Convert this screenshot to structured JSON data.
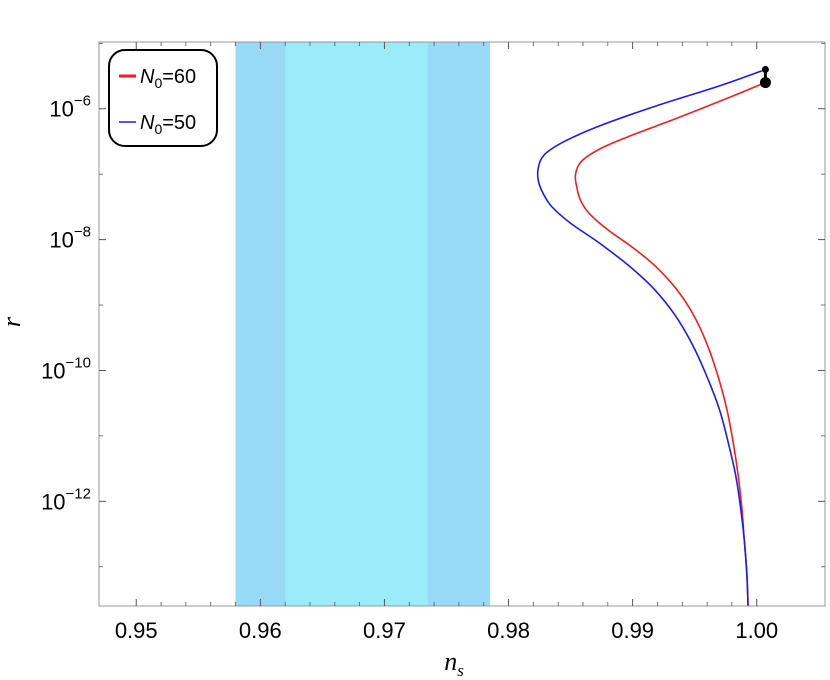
{
  "chart_data": {
    "type": "line",
    "title": "",
    "xlabel": "n",
    "xlabel_sub": "s",
    "ylabel": "r",
    "xlim": [
      0.947,
      1.0055
    ],
    "ylim_log10": [
      -13.6,
      -4.98
    ],
    "yscale": "log",
    "grid": false,
    "legend_position": "top-left",
    "x_ticks": [
      {
        "value": 0.95,
        "label": "0.95"
      },
      {
        "value": 0.96,
        "label": "0.96"
      },
      {
        "value": 0.97,
        "label": "0.97"
      },
      {
        "value": 0.98,
        "label": "0.98"
      },
      {
        "value": 0.99,
        "label": "0.99"
      },
      {
        "value": 1.0,
        "label": "1.00"
      }
    ],
    "y_ticks": [
      {
        "value": -6,
        "base": "10",
        "exp": "−6"
      },
      {
        "value": -8,
        "base": "10",
        "exp": "−8"
      },
      {
        "value": -10,
        "base": "10",
        "exp": "−10"
      },
      {
        "value": -12,
        "base": "10",
        "exp": "−12"
      }
    ],
    "bands": [
      {
        "x0": 0.958,
        "x1": 0.9785,
        "color": "#98d9f7"
      },
      {
        "x0": 0.962,
        "x1": 0.9735,
        "color": "#9cebfa"
      }
    ],
    "series": [
      {
        "name_main": "N",
        "name_sub": "0",
        "name_rest": "=60",
        "color": "#ff1a1a",
        "x": [
          0.9993,
          0.9992,
          0.999,
          0.9988,
          0.9985,
          0.9981,
          0.9976,
          0.9969,
          0.996,
          0.9949,
          0.9935,
          0.9918,
          0.99,
          0.988,
          0.9865,
          0.9858,
          0.9855,
          0.9854,
          0.9859,
          0.9875,
          0.99,
          0.9935,
          0.9975,
          1.0007
        ],
        "log10y": [
          -13.6,
          -13.1,
          -12.6,
          -12.1,
          -11.6,
          -11.1,
          -10.6,
          -10.1,
          -9.6,
          -9.15,
          -8.75,
          -8.4,
          -8.12,
          -7.85,
          -7.6,
          -7.4,
          -7.2,
          -7.0,
          -6.8,
          -6.6,
          -6.4,
          -6.15,
          -5.85,
          -5.6
        ]
      },
      {
        "name_main": "N",
        "name_sub": "0",
        "name_rest": "=50",
        "color": "#1a1aff",
        "x": [
          0.9993,
          0.9992,
          0.999,
          0.9987,
          0.9983,
          0.9977,
          0.997,
          0.996,
          0.9948,
          0.9934,
          0.9917,
          0.9897,
          0.9873,
          0.985,
          0.9835,
          0.9828,
          0.9824,
          0.9824,
          0.9829,
          0.9845,
          0.9875,
          0.992,
          0.997,
          1.0007
        ],
        "log10y": [
          -13.6,
          -13.1,
          -12.6,
          -12.1,
          -11.6,
          -11.1,
          -10.6,
          -10.1,
          -9.6,
          -9.15,
          -8.75,
          -8.4,
          -8.05,
          -7.75,
          -7.5,
          -7.3,
          -7.1,
          -6.9,
          -6.7,
          -6.5,
          -6.25,
          -5.95,
          -5.65,
          -5.4
        ]
      }
    ],
    "endpoints": [
      {
        "x": 1.0007,
        "log10y": -5.4,
        "size": "small"
      },
      {
        "x": 1.0007,
        "log10y": -5.6,
        "size": "large"
      }
    ]
  }
}
